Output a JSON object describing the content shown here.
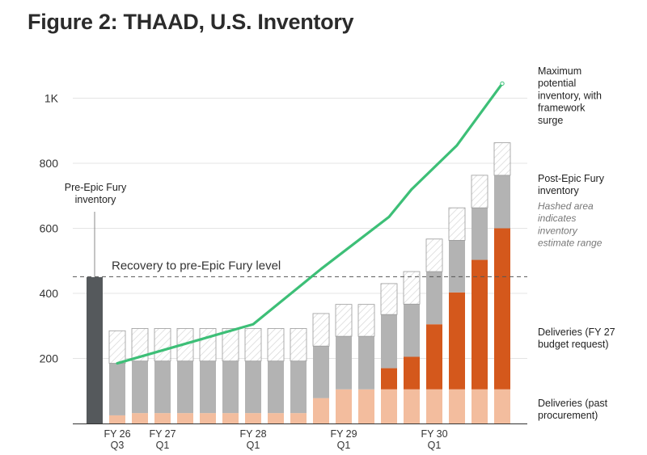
{
  "chart_data": {
    "type": "bar",
    "title": "Figure 2: THAAD, U.S. Inventory",
    "ylim": [
      0,
      1100
    ],
    "y_ticks": [
      {
        "value": 200,
        "label": "200"
      },
      {
        "value": 400,
        "label": "400"
      },
      {
        "value": 600,
        "label": "600"
      },
      {
        "value": 800,
        "label": "800"
      },
      {
        "value": 1000,
        "label": "1K"
      }
    ],
    "x_tick_labels": [
      {
        "index": 1,
        "lines": [
          "FY 26",
          "Q3"
        ]
      },
      {
        "index": 3,
        "lines": [
          "FY 27",
          "Q1"
        ]
      },
      {
        "index": 7,
        "lines": [
          "FY 28",
          "Q1"
        ]
      },
      {
        "index": 11,
        "lines": [
          "FY 29",
          "Q1"
        ]
      },
      {
        "index": 15,
        "lines": [
          "FY 30",
          "Q1"
        ]
      }
    ],
    "pre_epic_fury_inventory": {
      "index": 0,
      "value": 450,
      "color": "#55595c"
    },
    "series": [
      {
        "key": "past",
        "color": "#f3bd9e",
        "values": [
          null,
          25,
          32,
          32,
          32,
          32,
          32,
          32,
          32,
          32,
          78,
          105,
          105,
          105,
          105,
          105,
          105,
          105,
          105
        ]
      },
      {
        "key": "fy27",
        "color": "#d4581c",
        "values": [
          null,
          0,
          0,
          0,
          0,
          0,
          0,
          0,
          0,
          0,
          0,
          0,
          0,
          65,
          100,
          200,
          298,
          398,
          495
        ]
      },
      {
        "key": "post",
        "color": "#b3b3b3",
        "values": [
          null,
          160,
          160,
          160,
          160,
          160,
          160,
          160,
          160,
          160,
          160,
          163,
          163,
          165,
          162,
          162,
          160,
          160,
          163
        ]
      },
      {
        "key": "range",
        "color": "#ffffff",
        "values": [
          null,
          100,
          100,
          100,
          100,
          100,
          100,
          100,
          100,
          100,
          100,
          98,
          98,
          95,
          100,
          100,
          100,
          100,
          100
        ]
      }
    ],
    "max_potential_line": {
      "color": "#3dbf77",
      "points": [
        [
          1,
          185
        ],
        [
          7,
          305
        ],
        [
          10,
          475
        ],
        [
          13,
          635
        ],
        [
          14,
          720
        ],
        [
          16,
          855
        ],
        [
          18,
          1045
        ]
      ]
    },
    "reference_line": {
      "value": 450,
      "label": "Recovery to pre-Epic Fury level"
    },
    "annotations": {
      "pre_epic": [
        "Pre-Epic Fury",
        "inventory"
      ],
      "max_potential": [
        "Maximum",
        "potential",
        "inventory, with",
        "framework",
        "surge"
      ],
      "post_epic": [
        "Post-Epic Fury",
        "inventory"
      ],
      "hashed_note": [
        "Hashed area",
        "indicates",
        "inventory",
        "estimate range"
      ],
      "fy27_deliveries": [
        "Deliveries (FY 27",
        "budget request)"
      ],
      "past_deliveries": [
        "Deliveries (past",
        "procurement)"
      ]
    }
  }
}
